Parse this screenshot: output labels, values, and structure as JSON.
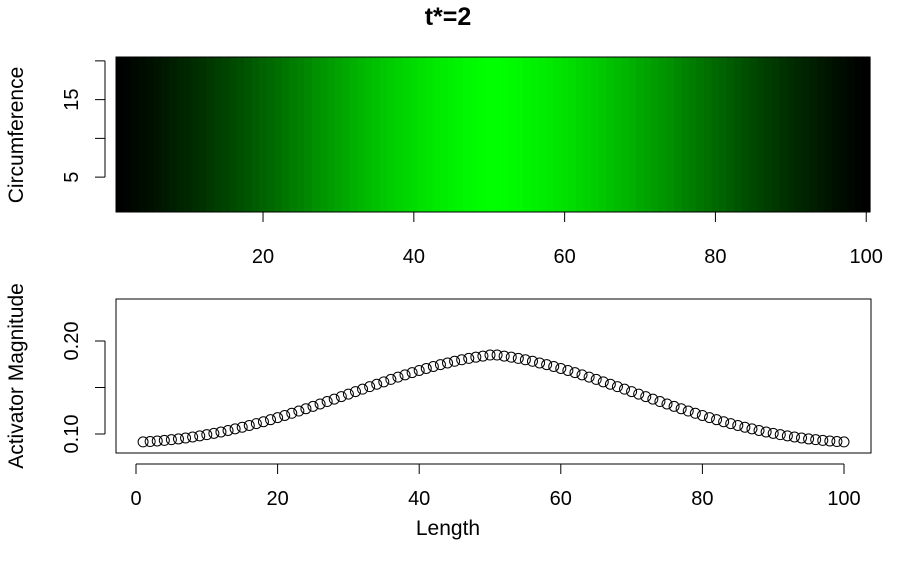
{
  "title": "t*=2",
  "chart_data": [
    {
      "type": "heatmap",
      "title": "t*=2",
      "xlabel": "",
      "ylabel": "Circumference",
      "x_range": [
        1,
        100
      ],
      "y_range": [
        1,
        20
      ],
      "x_ticks": [
        20,
        40,
        60,
        80,
        100
      ],
      "y_ticks": [
        5,
        10,
        15,
        20
      ],
      "y_tick_labels": [
        "5",
        "",
        "15",
        ""
      ],
      "color_scale": {
        "low": "#000000",
        "high": "#00ff00"
      },
      "note": "Values constant along circumference; intensity follows activator magnitude over length"
    },
    {
      "type": "scatter",
      "xlabel": "Length",
      "ylabel": "Activator Magnitude",
      "xlim": [
        0,
        100
      ],
      "ylim": [
        0.08,
        0.24
      ],
      "x_ticks": [
        0,
        20,
        40,
        60,
        80,
        100
      ],
      "y_ticks": [
        0.1,
        0.15,
        0.2
      ],
      "y_tick_labels": [
        "0.10",
        "",
        "0.20"
      ],
      "marker": "open-circle",
      "x": [
        1,
        2,
        3,
        4,
        5,
        6,
        7,
        8,
        9,
        10,
        11,
        12,
        13,
        14,
        15,
        16,
        17,
        18,
        19,
        20,
        21,
        22,
        23,
        24,
        25,
        26,
        27,
        28,
        29,
        30,
        31,
        32,
        33,
        34,
        35,
        36,
        37,
        38,
        39,
        40,
        41,
        42,
        43,
        44,
        45,
        46,
        47,
        48,
        49,
        50,
        51,
        52,
        53,
        54,
        55,
        56,
        57,
        58,
        59,
        60,
        61,
        62,
        63,
        64,
        65,
        66,
        67,
        68,
        69,
        70,
        71,
        72,
        73,
        74,
        75,
        76,
        77,
        78,
        79,
        80,
        81,
        82,
        83,
        84,
        85,
        86,
        87,
        88,
        89,
        90,
        91,
        92,
        93,
        94,
        95,
        96,
        97,
        98,
        99,
        100
      ],
      "y": [
        0.0915,
        0.0919,
        0.0925,
        0.0931,
        0.0939,
        0.0947,
        0.0957,
        0.0968,
        0.098,
        0.0993,
        0.1007,
        0.1022,
        0.1038,
        0.1055,
        0.1073,
        0.1092,
        0.1112,
        0.1132,
        0.1154,
        0.1176,
        0.1199,
        0.1223,
        0.1247,
        0.1272,
        0.1297,
        0.1323,
        0.1349,
        0.1375,
        0.1402,
        0.1429,
        0.1456,
        0.1482,
        0.1509,
        0.1535,
        0.1561,
        0.1587,
        0.1612,
        0.1636,
        0.166,
        0.1683,
        0.1705,
        0.1726,
        0.1746,
        0.1764,
        0.1782,
        0.1798,
        0.1813,
        0.1826,
        0.1838,
        0.1849,
        0.1849,
        0.1838,
        0.1826,
        0.1813,
        0.1798,
        0.1782,
        0.1764,
        0.1746,
        0.1726,
        0.1705,
        0.1683,
        0.166,
        0.1636,
        0.1612,
        0.1587,
        0.1561,
        0.1535,
        0.1509,
        0.1482,
        0.1456,
        0.1429,
        0.1402,
        0.1375,
        0.1349,
        0.1323,
        0.1297,
        0.1272,
        0.1247,
        0.1223,
        0.1199,
        0.1176,
        0.1154,
        0.1132,
        0.1112,
        0.1092,
        0.1073,
        0.1055,
        0.1038,
        0.1022,
        0.1007,
        0.0993,
        0.098,
        0.0968,
        0.0957,
        0.0947,
        0.0939,
        0.0931,
        0.0925,
        0.0919,
        0.0915
      ]
    }
  ]
}
